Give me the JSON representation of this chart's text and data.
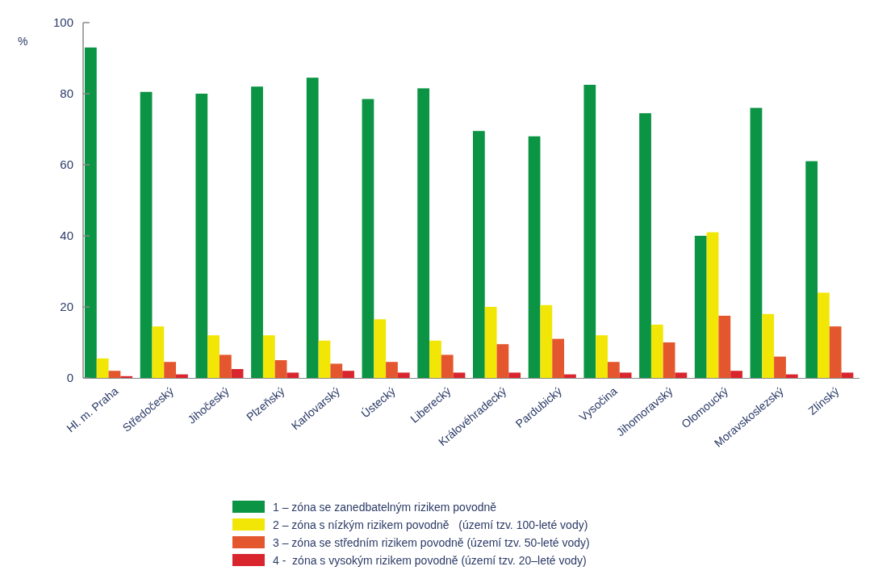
{
  "chart_data": {
    "type": "bar",
    "ylabel": "%",
    "categories": [
      "Hl. m. Praha",
      "Středočeský",
      "Jihočeský",
      "Plzeňský",
      "Karlovarský",
      "Ústecký",
      "Liberecký",
      "Královéhradecký",
      "Pardubický",
      "Vysočina",
      "Jihomoravský",
      "Olomoucký",
      "Moravskoslezský",
      "Zlínský"
    ],
    "series": [
      {
        "name": "1 – zóna se zanedbatelným rizikem povodně",
        "color": "#0a9444",
        "values": [
          93,
          80.5,
          80,
          82,
          84.5,
          78.5,
          81.5,
          69.5,
          68,
          82.5,
          74.5,
          40,
          76,
          61
        ]
      },
      {
        "name": "2 – zóna s nízkým rizikem povodně   (území tzv. 100-leté vody)",
        "color": "#f2e607",
        "values": [
          5.5,
          14.5,
          12,
          12,
          10.5,
          16.5,
          10.5,
          20,
          20.5,
          12,
          15,
          41,
          18,
          24
        ]
      },
      {
        "name": "3 – zóna se středním rizikem povodně (území tzv. 50-leté vody)",
        "color": "#e4572e",
        "values": [
          2,
          4.5,
          6.5,
          5,
          4,
          4.5,
          6.5,
          9.5,
          11,
          4.5,
          10,
          17.5,
          6,
          14.5
        ]
      },
      {
        "name": "4 -  zóna s vysokým rizikem povodně (území tzv. 20–leté vody)",
        "color": "#d9262e",
        "values": [
          0.5,
          1,
          2.5,
          1.5,
          2,
          1.5,
          1.5,
          1.5,
          1,
          1.5,
          1.5,
          2,
          1,
          1.5
        ]
      }
    ],
    "ylim": [
      0,
      100
    ],
    "yticks": [
      0,
      20,
      40,
      60,
      80,
      100
    ],
    "grid": false,
    "legend": "bottom"
  }
}
